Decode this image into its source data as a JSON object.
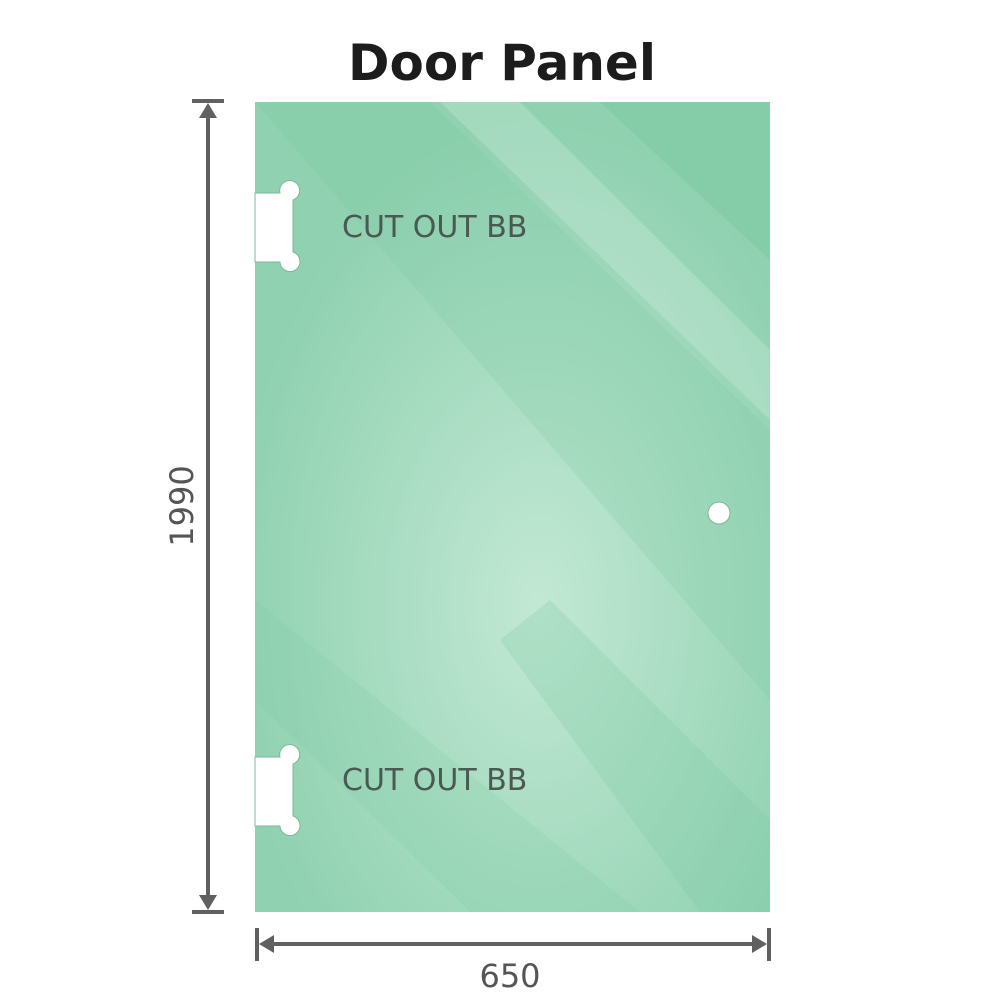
{
  "title": "Door Panel",
  "labels": {
    "cutout_top": "CUT OUT BB",
    "cutout_bottom": "CUT OUT BB"
  },
  "dimensions": {
    "height": "1990",
    "width": "650"
  },
  "colors": {
    "glass": "#8fd1b0",
    "glass_dark": "#7ac8a2",
    "glass_light": "#bfe6d2",
    "dimension_line": "#606060",
    "text": "#4a5a52"
  }
}
